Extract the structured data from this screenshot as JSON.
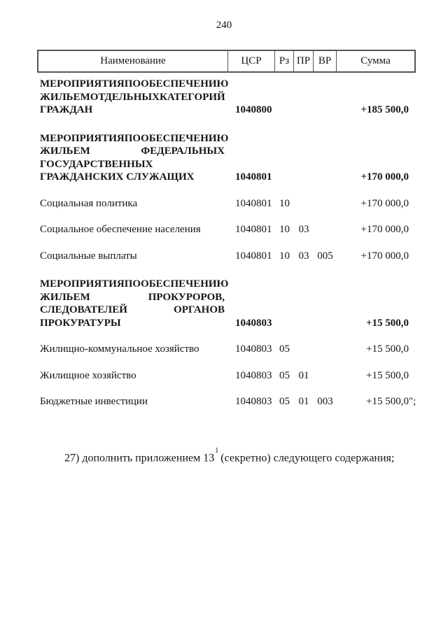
{
  "page": {
    "number": "240"
  },
  "colors": {
    "text": "#161616",
    "table_border": "#565656",
    "background": "#ffffff"
  },
  "table": {
    "headers": [
      "Наименование",
      "ЦСР",
      "Рз",
      "ПР",
      "ВР",
      "Сумма"
    ],
    "rows": [
      {
        "name_lines": [
          "МЕРОПРИЯТИЯ ПО ОБЕСПЕЧЕНИЮ",
          "ЖИЛЬЕМ ОТДЕЛЬНЫХ КАТЕГОРИЙ",
          "ГРАЖДАН"
        ],
        "bold": true,
        "csr": "1040800",
        "rz": "",
        "pr": "",
        "vr": "",
        "summa": "+185 500,0",
        "summa_suffix": ""
      },
      {
        "name_lines": [
          "МЕРОПРИЯТИЯ ПО ОБЕСПЕЧЕНИЮ",
          "ЖИЛЬЕМ ФЕДЕРАЛЬНЫХ",
          "ГОСУДАРСТВЕННЫХ",
          "ГРАЖДАНСКИХ СЛУЖАЩИХ"
        ],
        "bold": true,
        "csr": "1040801",
        "rz": "",
        "pr": "",
        "vr": "",
        "summa": "+170 000,0",
        "summa_suffix": ""
      },
      {
        "name_lines": [
          "Социальная политика"
        ],
        "bold": false,
        "csr": "1040801",
        "rz": "10",
        "pr": "",
        "vr": "",
        "summa": "+170 000,0",
        "summa_suffix": ""
      },
      {
        "name_lines": [
          "Социальное обеспечение населения"
        ],
        "bold": false,
        "csr": "1040801",
        "rz": "10",
        "pr": "03",
        "vr": "",
        "summa": "+170 000,0",
        "summa_suffix": ""
      },
      {
        "name_lines": [
          "Социальные выплаты"
        ],
        "bold": false,
        "csr": "1040801",
        "rz": "10",
        "pr": "03",
        "vr": "005",
        "summa": "+170 000,0",
        "summa_suffix": ""
      },
      {
        "name_lines": [
          "МЕРОПРИЯТИЯ ПО ОБЕСПЕЧЕНИЮ",
          "ЖИЛЬЕМ ПРОКУРОРОВ,",
          "СЛЕДОВАТЕЛЕЙ ОРГАНОВ",
          "ПРОКУРАТУРЫ"
        ],
        "bold": true,
        "csr": "1040803",
        "rz": "",
        "pr": "",
        "vr": "",
        "summa": "+15 500,0",
        "summa_suffix": ""
      },
      {
        "name_lines": [
          "Жилищно-коммунальное хозяйство"
        ],
        "bold": false,
        "csr": "1040803",
        "rz": "05",
        "pr": "",
        "vr": "",
        "summa": "+15 500,0",
        "summa_suffix": ""
      },
      {
        "name_lines": [
          "Жилищное хозяйство"
        ],
        "bold": false,
        "csr": "1040803",
        "rz": "05",
        "pr": "01",
        "vr": "",
        "summa": "+15 500,0",
        "summa_suffix": ""
      },
      {
        "name_lines": [
          "Бюджетные инвестиции"
        ],
        "bold": false,
        "csr": "1040803",
        "rz": "05",
        "pr": "01",
        "vr": "003",
        "summa": "+15 500,0",
        "summa_suffix": "\";"
      }
    ]
  },
  "footnote": {
    "prefix": "27) дополнить приложением 13",
    "superscript": "1",
    "suffix": " (секретно) следующего содержания;"
  }
}
